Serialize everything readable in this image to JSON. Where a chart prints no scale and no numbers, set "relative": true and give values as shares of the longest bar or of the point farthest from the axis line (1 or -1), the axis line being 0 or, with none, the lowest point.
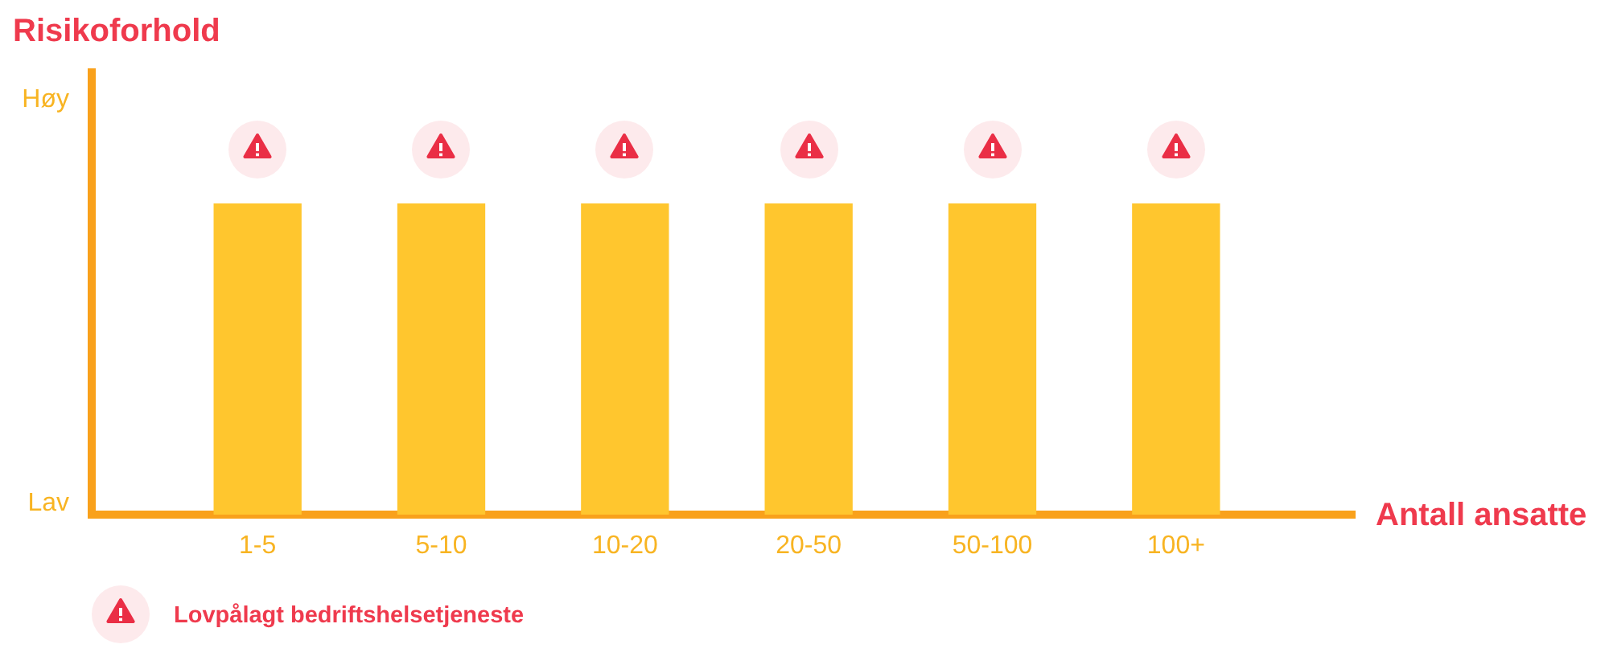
{
  "chart_data": {
    "type": "bar",
    "relative": true,
    "ylabel": "Risikoforhold",
    "xlabel": "Antall ansatte",
    "categories": [
      "1-5",
      "5-10",
      "10-20",
      "20-50",
      "50-100",
      "100+"
    ],
    "annotations": [
      "Høy",
      "Lav"
    ],
    "series": [
      {
        "color": "#ffc62e",
        "values": [
          0.85,
          0.85,
          0.85,
          0.85,
          0.85,
          0.85
        ]
      },
      {
        "type": "scatter",
        "name": "Lovpålagt bedriftshelsetjeneste",
        "color": "#ea2e45",
        "x": [
          "1-5",
          "5-10",
          "10-20",
          "20-50",
          "50-100",
          "100+"
        ],
        "values": [
          1,
          1,
          1,
          1,
          1,
          1
        ]
      }
    ],
    "legend": "bottom left",
    "grid": false
  }
}
